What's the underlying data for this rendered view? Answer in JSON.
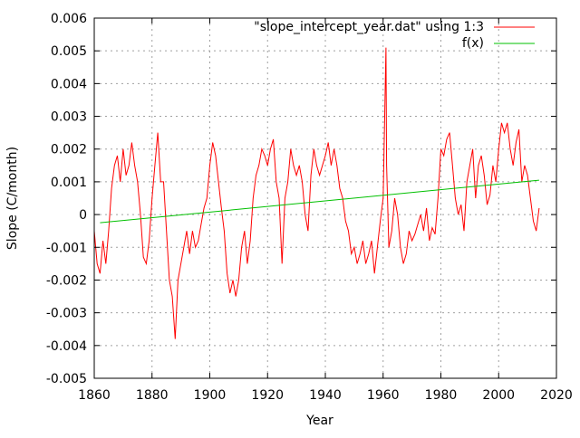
{
  "chart_data": {
    "type": "line",
    "title": "",
    "xlabel": "Year",
    "ylabel": "Slope (C/month)",
    "xlim": [
      1860,
      2020
    ],
    "ylim": [
      -0.005,
      0.006
    ],
    "xticks": [
      "1860",
      "1880",
      "1900",
      "1920",
      "1940",
      "1960",
      "1980",
      "2000",
      "2020"
    ],
    "yticks": [
      "-0.005",
      "-0.004",
      "-0.003",
      "-0.002",
      "-0.001",
      "0",
      "0.001",
      "0.002",
      "0.003",
      "0.004",
      "0.005",
      "0.006"
    ],
    "grid": true,
    "legend_position": "top-right",
    "series": [
      {
        "name": "\"slope_intercept_year.dat\" using 1:3",
        "color": "#ff0000",
        "x": [
          1860,
          1861,
          1862,
          1863,
          1864,
          1865,
          1866,
          1867,
          1868,
          1869,
          1870,
          1871,
          1872,
          1873,
          1874,
          1875,
          1876,
          1877,
          1878,
          1879,
          1880,
          1881,
          1882,
          1883,
          1884,
          1885,
          1886,
          1887,
          1888,
          1889,
          1890,
          1891,
          1892,
          1893,
          1894,
          1895,
          1896,
          1897,
          1898,
          1899,
          1900,
          1901,
          1902,
          1903,
          1904,
          1905,
          1906,
          1907,
          1908,
          1909,
          1910,
          1911,
          1912,
          1913,
          1914,
          1915,
          1916,
          1917,
          1918,
          1919,
          1920,
          1921,
          1922,
          1923,
          1924,
          1925,
          1926,
          1927,
          1928,
          1929,
          1930,
          1931,
          1932,
          1933,
          1934,
          1935,
          1936,
          1937,
          1938,
          1939,
          1940,
          1941,
          1942,
          1943,
          1944,
          1945,
          1946,
          1947,
          1948,
          1949,
          1950,
          1951,
          1952,
          1953,
          1954,
          1955,
          1956,
          1957,
          1958,
          1959,
          1960,
          1961,
          1961.2,
          1962,
          1963,
          1964,
          1965,
          1966,
          1967,
          1968,
          1969,
          1970,
          1971,
          1972,
          1973,
          1974,
          1975,
          1976,
          1977,
          1978,
          1979,
          1980,
          1981,
          1982,
          1983,
          1984,
          1985,
          1986,
          1987,
          1988,
          1989,
          1990,
          1991,
          1992,
          1993,
          1994,
          1995,
          1996,
          1997,
          1998,
          1999,
          2000,
          2001,
          2002,
          2003,
          2004,
          2005,
          2006,
          2007,
          2008,
          2009,
          2010,
          2011,
          2012,
          2013,
          2014
        ],
        "y": [
          -0.0005,
          -0.0015,
          -0.0018,
          -0.0008,
          -0.0015,
          -0.0005,
          0.0008,
          0.0015,
          0.0018,
          0.001,
          0.002,
          0.0012,
          0.0015,
          0.0022,
          0.0015,
          0.001,
          0.0,
          -0.0013,
          -0.0015,
          -0.0008,
          0.0005,
          0.0015,
          0.0025,
          0.001,
          0.001,
          -0.0005,
          -0.002,
          -0.0025,
          -0.0038,
          -0.002,
          -0.0015,
          -0.001,
          -0.0005,
          -0.0012,
          -0.0005,
          -0.001,
          -0.0008,
          -0.0003,
          0.0002,
          0.0005,
          0.0015,
          0.0022,
          0.0018,
          0.001,
          0.0002,
          -0.0005,
          -0.0018,
          -0.0024,
          -0.002,
          -0.0025,
          -0.002,
          -0.001,
          -0.0005,
          -0.0015,
          -0.0008,
          0.0005,
          0.0012,
          0.0015,
          0.002,
          0.0018,
          0.0015,
          0.002,
          0.0023,
          0.001,
          0.0005,
          -0.0015,
          0.0005,
          0.001,
          0.002,
          0.0015,
          0.0012,
          0.0015,
          0.001,
          0.0,
          -0.0005,
          0.0012,
          0.002,
          0.0015,
          0.0012,
          0.0015,
          0.0018,
          0.0022,
          0.0015,
          0.002,
          0.0015,
          0.0008,
          0.0005,
          -0.0002,
          -0.0005,
          -0.0012,
          -0.001,
          -0.0015,
          -0.0012,
          -0.0008,
          -0.0015,
          -0.0012,
          -0.0008,
          -0.0018,
          -0.001,
          -0.0002,
          0.0005,
          0.0051,
          0.0015,
          -0.001,
          -0.0005,
          0.0005,
          0.0,
          -0.001,
          -0.0015,
          -0.0012,
          -0.0005,
          -0.0008,
          -0.0006,
          -0.0003,
          0.0,
          -0.0005,
          0.0002,
          -0.0008,
          -0.0004,
          -0.0006,
          0.0005,
          0.002,
          0.0018,
          0.0023,
          0.0025,
          0.0015,
          0.0005,
          0.0,
          0.0003,
          -0.0005,
          0.001,
          0.0015,
          0.002,
          0.0005,
          0.0015,
          0.0018,
          0.0012,
          0.0003,
          0.0006,
          0.0015,
          0.001,
          0.002,
          0.0028,
          0.0025,
          0.0028,
          0.002,
          0.0015,
          0.0022,
          0.0026,
          0.001,
          0.0015,
          0.0012,
          0.0005,
          -0.0002,
          -0.0005,
          0.0002
        ]
      },
      {
        "name": "f(x)",
        "color": "#00c000",
        "x": [
          1862,
          2014
        ],
        "y": [
          -0.00025,
          0.00105
        ]
      }
    ]
  }
}
